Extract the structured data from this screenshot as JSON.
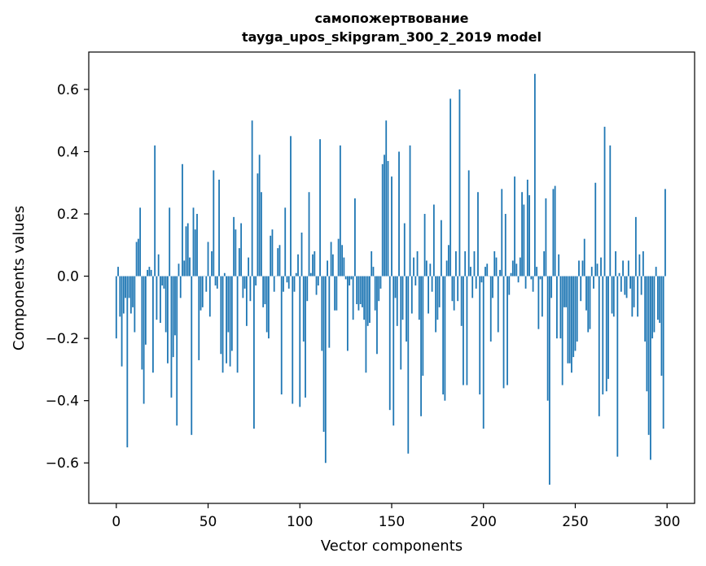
{
  "chart_data": {
    "type": "bar",
    "title": "самопожертвование",
    "subtitle": "tayga_upos_skipgram_300_2_2019 model",
    "xlabel": "Vector components",
    "ylabel": "Components values",
    "xlim": [
      -15,
      315
    ],
    "ylim": [
      -0.73,
      0.72
    ],
    "xticks": [
      0,
      50,
      100,
      150,
      200,
      250,
      300
    ],
    "yticks": [
      -0.6,
      -0.4,
      -0.2,
      0.0,
      0.2,
      0.4,
      0.6
    ],
    "ytick_labels": [
      "−0.6",
      "−0.4",
      "−0.2",
      "0.0",
      "0.2",
      "0.4",
      "0.6"
    ],
    "bar_color": "#1f77b4",
    "grid": false,
    "values": [
      -0.2,
      0.03,
      -0.13,
      -0.29,
      -0.12,
      -0.07,
      -0.55,
      -0.07,
      -0.12,
      -0.1,
      -0.18,
      0.11,
      0.12,
      0.22,
      -0.3,
      -0.41,
      -0.22,
      0.02,
      0.03,
      0.02,
      -0.31,
      0.42,
      -0.14,
      0.07,
      -0.15,
      -0.03,
      -0.04,
      -0.18,
      -0.28,
      0.22,
      -0.39,
      -0.26,
      -0.19,
      -0.48,
      0.04,
      -0.07,
      0.36,
      0.05,
      0.16,
      0.17,
      0.06,
      -0.51,
      0.22,
      0.15,
      0.2,
      -0.27,
      -0.11,
      -0.1,
      0.0,
      -0.05,
      0.11,
      -0.13,
      0.08,
      0.34,
      -0.03,
      -0.04,
      0.31,
      -0.25,
      -0.31,
      0.01,
      -0.28,
      -0.18,
      -0.29,
      -0.24,
      0.19,
      0.15,
      -0.31,
      0.09,
      0.17,
      -0.07,
      -0.04,
      -0.16,
      0.06,
      -0.08,
      0.5,
      -0.49,
      -0.03,
      0.33,
      0.39,
      0.27,
      -0.1,
      -0.09,
      -0.18,
      -0.2,
      0.13,
      0.15,
      -0.05,
      0.0,
      0.09,
      0.1,
      -0.38,
      -0.05,
      0.22,
      -0.02,
      -0.04,
      0.45,
      -0.41,
      -0.05,
      0.01,
      0.07,
      -0.42,
      0.14,
      -0.21,
      -0.39,
      -0.08,
      0.27,
      0.01,
      0.07,
      0.08,
      -0.06,
      -0.03,
      0.44,
      -0.24,
      -0.5,
      -0.6,
      0.05,
      -0.23,
      0.11,
      0.07,
      -0.11,
      -0.11,
      0.12,
      0.42,
      0.1,
      0.06,
      -0.01,
      -0.24,
      -0.03,
      -0.01,
      -0.14,
      0.25,
      -0.09,
      -0.11,
      -0.09,
      -0.1,
      -0.14,
      -0.31,
      -0.16,
      -0.15,
      0.08,
      0.03,
      -0.11,
      -0.25,
      -0.08,
      -0.04,
      0.36,
      0.39,
      0.5,
      0.37,
      -0.43,
      0.32,
      -0.48,
      -0.07,
      -0.16,
      0.4,
      -0.3,
      -0.14,
      0.17,
      -0.21,
      -0.57,
      0.42,
      -0.12,
      0.06,
      -0.03,
      0.08,
      -0.14,
      -0.45,
      -0.32,
      0.2,
      0.05,
      -0.12,
      0.04,
      -0.05,
      0.23,
      -0.18,
      -0.14,
      -0.1,
      0.18,
      -0.38,
      -0.4,
      0.05,
      0.1,
      0.57,
      -0.08,
      -0.11,
      0.08,
      -0.08,
      0.6,
      -0.16,
      -0.35,
      0.08,
      -0.35,
      0.34,
      0.03,
      -0.07,
      0.08,
      -0.04,
      0.27,
      -0.38,
      -0.02,
      -0.49,
      0.03,
      0.04,
      0.0,
      -0.21,
      -0.07,
      0.08,
      0.06,
      -0.18,
      0.02,
      0.28,
      -0.36,
      0.2,
      -0.35,
      -0.06,
      0.01,
      0.05,
      0.32,
      0.04,
      -0.02,
      0.06,
      0.27,
      0.23,
      -0.04,
      0.31,
      0.26,
      -0.01,
      -0.05,
      0.65,
      0.03,
      -0.17,
      -0.01,
      -0.13,
      0.08,
      0.25,
      -0.4,
      -0.67,
      -0.07,
      0.28,
      0.29,
      -0.2,
      0.07,
      -0.2,
      -0.35,
      -0.1,
      -0.1,
      -0.28,
      -0.28,
      -0.31,
      -0.26,
      -0.24,
      -0.21,
      0.05,
      -0.08,
      0.05,
      0.12,
      -0.11,
      -0.18,
      -0.17,
      0.03,
      -0.04,
      0.3,
      0.04,
      -0.45,
      0.06,
      -0.38,
      0.48,
      -0.37,
      -0.33,
      0.42,
      -0.12,
      -0.13,
      0.08,
      -0.58,
      0.01,
      -0.05,
      0.05,
      -0.06,
      -0.07,
      0.05,
      -0.04,
      -0.13,
      -0.1,
      0.19,
      -0.13,
      0.07,
      -0.06,
      0.08,
      -0.21,
      -0.37,
      -0.51,
      -0.59,
      -0.2,
      -0.18,
      0.03,
      -0.14,
      -0.15,
      -0.32,
      -0.49,
      0.28
    ]
  }
}
